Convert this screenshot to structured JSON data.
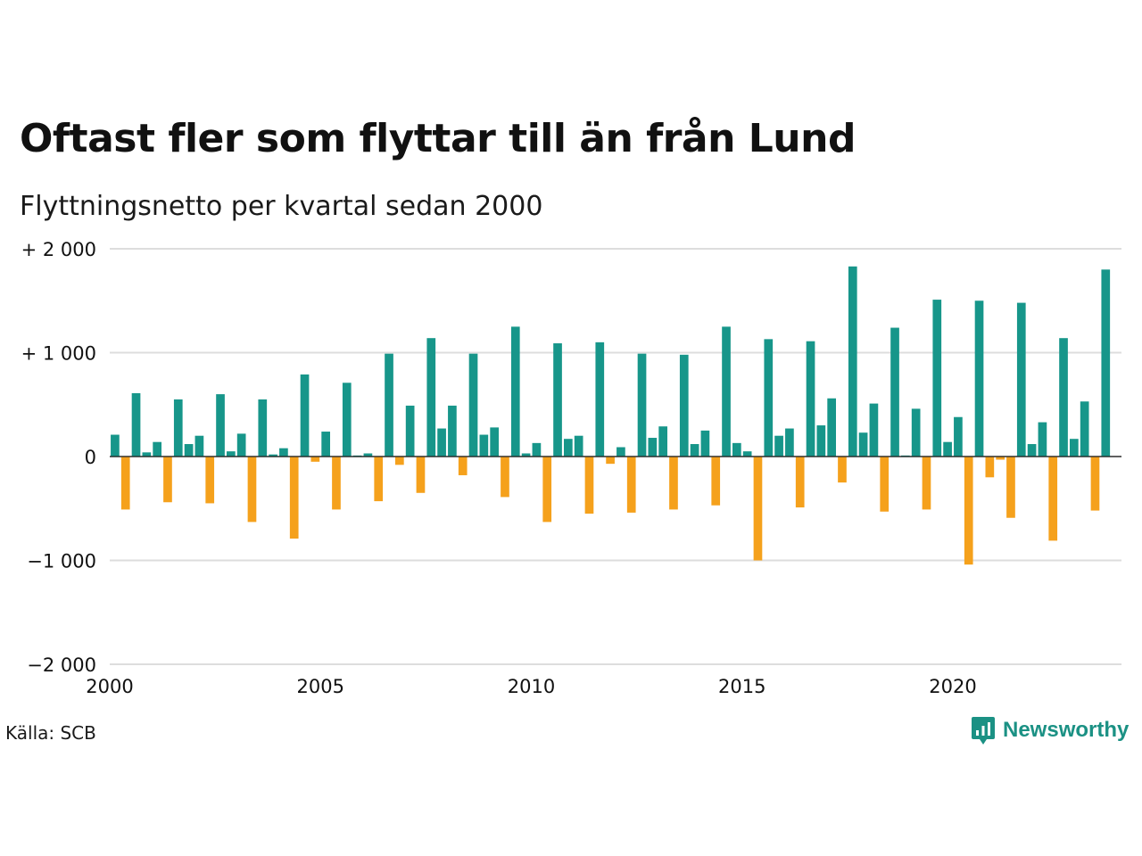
{
  "colors": {
    "positive": "#17968a",
    "negative": "#f5a11c",
    "grid": "#dddddd",
    "text": "#111111"
  },
  "source_text": "Källa: SCB",
  "brand": {
    "name": "Newsworthy",
    "icon": "bar-chart-speech-bubble-icon"
  },
  "chart_data": {
    "type": "bar",
    "title": "Oftast fler som flyttar till än från Lund",
    "subtitle": "Flyttningsnetto per kvartal sedan 2000",
    "xlabel": "",
    "ylabel": "",
    "xlim": [
      2000,
      2024
    ],
    "ylim": [
      -2000,
      2000
    ],
    "x_ticks": [
      {
        "value": 2000,
        "label": "2000"
      },
      {
        "value": 2005,
        "label": "2005"
      },
      {
        "value": 2010,
        "label": "2010"
      },
      {
        "value": 2015,
        "label": "2015"
      },
      {
        "value": 2020,
        "label": "2020"
      }
    ],
    "y_ticks": [
      {
        "value": 2000,
        "label": "+ 2 000"
      },
      {
        "value": 1000,
        "label": "+ 1 000"
      },
      {
        "value": 0,
        "label": "0"
      },
      {
        "value": -1000,
        "label": "−1 000"
      },
      {
        "value": -2000,
        "label": "−2 000"
      }
    ],
    "grid": true,
    "start_quarter": "2000 Q1",
    "values": [
      210,
      -510,
      610,
      40,
      140,
      -440,
      550,
      120,
      200,
      -450,
      600,
      50,
      220,
      -630,
      550,
      20,
      80,
      -790,
      790,
      -50,
      240,
      -510,
      710,
      10,
      30,
      -430,
      990,
      -80,
      490,
      -350,
      1140,
      270,
      490,
      -180,
      990,
      210,
      280,
      -390,
      1250,
      30,
      130,
      -630,
      1090,
      170,
      200,
      -550,
      1100,
      -70,
      90,
      -540,
      990,
      180,
      290,
      -510,
      980,
      120,
      250,
      -470,
      1250,
      130,
      50,
      -1000,
      1130,
      200,
      270,
      -490,
      1110,
      300,
      560,
      -250,
      1830,
      230,
      510,
      -530,
      1240,
      10,
      460,
      -510,
      1510,
      140,
      380,
      -1040,
      1500,
      -200,
      -30,
      -590,
      1480,
      120,
      330,
      -810,
      1140,
      170,
      530,
      -520,
      1800
    ]
  }
}
